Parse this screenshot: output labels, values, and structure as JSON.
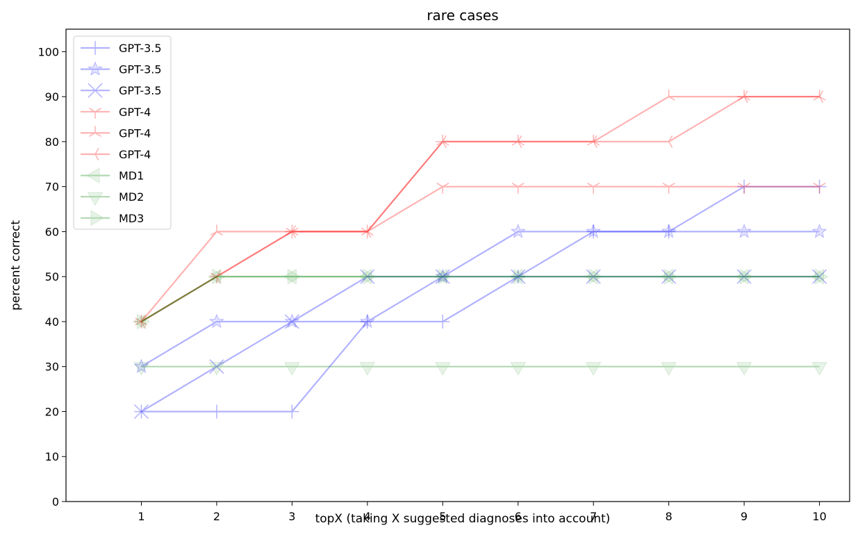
{
  "chart_data": {
    "type": "line",
    "title": "rare cases",
    "xlabel": "topX (taking X suggested diagnoses into account)",
    "ylabel": "percent correct",
    "x": [
      1,
      2,
      3,
      4,
      5,
      6,
      7,
      8,
      9,
      10
    ],
    "xlim": [
      0,
      10.4
    ],
    "ylim": [
      0,
      105
    ],
    "yticks": [
      0,
      10,
      20,
      30,
      40,
      50,
      60,
      70,
      80,
      90,
      100
    ],
    "grid": false,
    "legend_position": "top-left",
    "series": [
      {
        "name": "GPT-3.5",
        "color": "#0000ff",
        "marker": "plus",
        "values": [
          20,
          20,
          20,
          40,
          40,
          50,
          60,
          60,
          70,
          70
        ]
      },
      {
        "name": "GPT-3.5",
        "color": "#0000ff",
        "marker": "star",
        "values": [
          30,
          40,
          40,
          40,
          50,
          60,
          60,
          60,
          60,
          60
        ]
      },
      {
        "name": "GPT-3.5",
        "color": "#0000ff",
        "marker": "x",
        "values": [
          20,
          30,
          40,
          50,
          50,
          50,
          50,
          50,
          50,
          50
        ]
      },
      {
        "name": "GPT-4",
        "color": "#ff0000",
        "marker": "tri_down",
        "values": [
          40,
          50,
          60,
          60,
          70,
          70,
          70,
          70,
          70,
          70
        ]
      },
      {
        "name": "GPT-4",
        "color": "#ff0000",
        "marker": "tri_up",
        "values": [
          40,
          60,
          60,
          60,
          80,
          80,
          80,
          90,
          90,
          90
        ]
      },
      {
        "name": "GPT-4",
        "color": "#ff0000",
        "marker": "tri_left",
        "values": [
          40,
          50,
          60,
          60,
          80,
          80,
          80,
          80,
          90,
          90
        ]
      },
      {
        "name": "MD1",
        "color": "#008000",
        "marker": "triangle_left",
        "values": [
          40,
          50,
          50,
          50,
          50,
          50,
          50,
          50,
          50,
          50
        ]
      },
      {
        "name": "MD2",
        "color": "#008000",
        "marker": "triangle_down",
        "values": [
          30,
          30,
          30,
          30,
          30,
          30,
          30,
          30,
          30,
          30
        ]
      },
      {
        "name": "MD3",
        "color": "#008000",
        "marker": "triangle_right",
        "values": [
          40,
          50,
          50,
          50,
          50,
          50,
          50,
          50,
          50,
          50
        ]
      }
    ]
  }
}
